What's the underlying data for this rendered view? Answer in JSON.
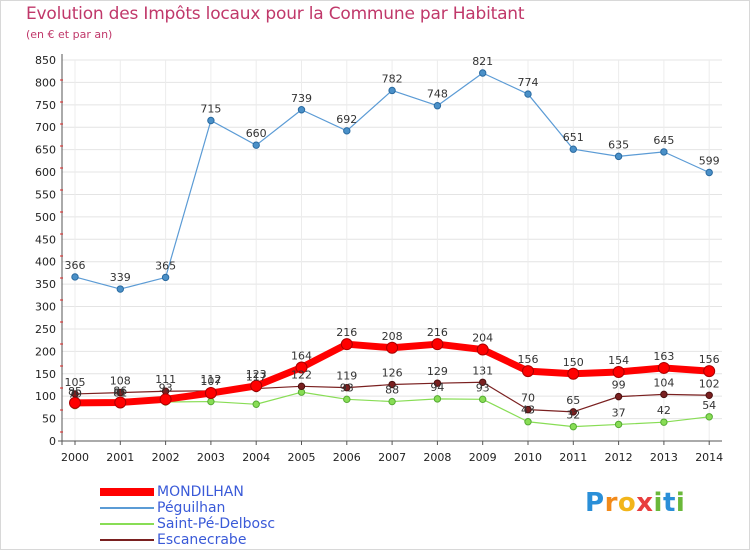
{
  "title": "Evolution des Impôts locaux pour la Commune par Habitant",
  "subtitle": "(en € et par an)",
  "logo": {
    "text": "Proxiti",
    "letters": [
      "P",
      "r",
      "o",
      "x",
      "i",
      "t",
      "i"
    ],
    "colors": [
      "#2a8fd8",
      "#f28a1a",
      "#f2b51a",
      "#e83e3e",
      "#6ab83a",
      "#2a8fd8",
      "#6ab83a"
    ]
  },
  "chart_data": {
    "type": "line",
    "title": "Evolution des Impôts locaux pour la Commune par Habitant",
    "subtitle": "(en € et par an)",
    "xlabel": "",
    "ylabel": "",
    "ylim": [
      0,
      850
    ],
    "yticks": [
      0,
      50,
      100,
      150,
      200,
      250,
      300,
      350,
      400,
      450,
      500,
      550,
      600,
      650,
      700,
      750,
      800,
      850
    ],
    "x": [
      "2000",
      "2001",
      "2002",
      "2003",
      "2004",
      "2005",
      "2006",
      "2007",
      "2008",
      "2009",
      "2010",
      "2011",
      "2012",
      "2013",
      "2014"
    ],
    "series": [
      {
        "name": "MONDILHAN",
        "color": "#ff0000",
        "values": [
          85,
          86,
          93,
          107,
          123,
          164,
          216,
          208,
          216,
          204,
          156,
          150,
          154,
          163,
          156
        ],
        "labels": [
          "85",
          "86",
          "93",
          "107",
          "123",
          "164",
          "216",
          "208",
          "216",
          "204",
          "156",
          "150",
          "154",
          "163",
          "156"
        ]
      },
      {
        "name": "Péguilhan",
        "color": "#5b9bd5",
        "values": [
          366,
          339,
          365,
          715,
          660,
          739,
          692,
          782,
          748,
          821,
          774,
          651,
          635,
          645,
          599
        ],
        "labels": [
          "366",
          "339",
          "365",
          "715",
          "660",
          "739",
          "692",
          "782",
          "748",
          "821",
          "774",
          "651",
          "635",
          "645",
          "599"
        ]
      },
      {
        "name": "Saint-Pé-Delbosc",
        "color": "#88dd55",
        "values": [
          79,
          81,
          87,
          88,
          82,
          109,
          93,
          88,
          94,
          93,
          43,
          32,
          37,
          42,
          54
        ],
        "labels": [
          "79",
          "81",
          "",
          "",
          "",
          "",
          "93",
          "88",
          "94",
          "93",
          "43",
          "32",
          "37",
          "42",
          "54"
        ]
      },
      {
        "name": "Escanecrabe",
        "color": "#7a2020",
        "values": [
          105,
          108,
          111,
          112,
          117,
          122,
          119,
          126,
          129,
          131,
          70,
          65,
          99,
          104,
          102
        ],
        "labels": [
          "105",
          "108",
          "111",
          "112",
          "117",
          "122",
          "119",
          "126",
          "129",
          "131",
          "70",
          "65",
          "99",
          "104",
          "102"
        ]
      }
    ],
    "legend_position": "bottom-left"
  }
}
